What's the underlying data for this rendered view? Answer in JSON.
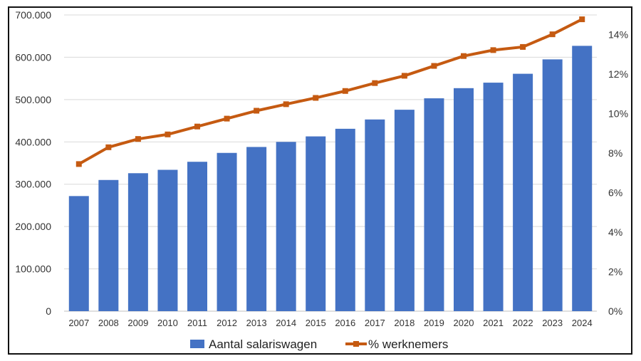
{
  "chart_data": {
    "type": "bar+line",
    "title": "",
    "categories": [
      "2007",
      "2008",
      "2009",
      "2010",
      "2011",
      "2012",
      "2013",
      "2014",
      "2015",
      "2016",
      "2017",
      "2018",
      "2019",
      "2020",
      "2021",
      "2022",
      "2023",
      "2024"
    ],
    "series": [
      {
        "name": "Aantal salariswagen",
        "type": "bar",
        "axis": "left",
        "color": "#4472C4",
        "values": [
          272000,
          310000,
          326000,
          334000,
          353000,
          374000,
          388000,
          400000,
          413000,
          431000,
          453000,
          476000,
          503000,
          527000,
          540000,
          561000,
          595000,
          627000
        ]
      },
      {
        "name": "% werknemers",
        "type": "line",
        "axis": "right",
        "color": "#C55A11",
        "values": [
          0.0745,
          0.083,
          0.0872,
          0.0895,
          0.0935,
          0.0975,
          0.1015,
          0.1048,
          0.108,
          0.1115,
          0.1155,
          0.1192,
          0.1242,
          0.1292,
          0.1322,
          0.1338,
          0.1402,
          0.1478
        ]
      }
    ],
    "y_left": {
      "ylim": [
        0,
        700000
      ],
      "ticks": [
        "0",
        "100.000",
        "200.000",
        "300.000",
        "400.000",
        "500.000",
        "600.000",
        "700.000"
      ]
    },
    "y_right": {
      "ylim": [
        0,
        0.15
      ],
      "ticks": [
        "0%",
        "2%",
        "4%",
        "6%",
        "8%",
        "10%",
        "12%",
        "14%"
      ]
    },
    "grid": true,
    "legend": "bottom"
  }
}
